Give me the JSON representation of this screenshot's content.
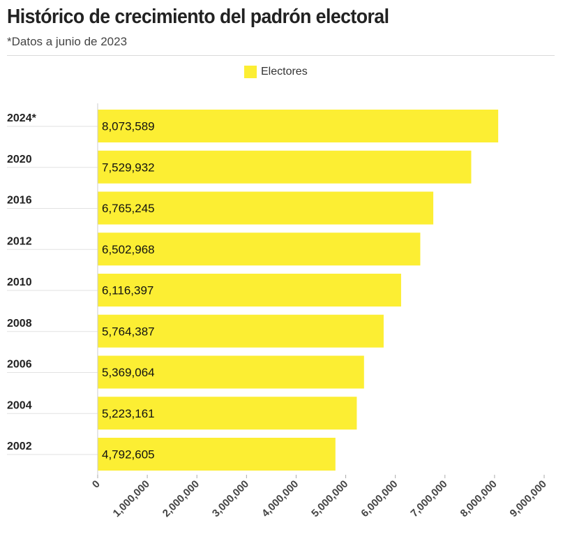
{
  "header": {
    "title": "Histórico de crecimiento del padrón electoral",
    "subtitle": "*Datos a junio de 2023"
  },
  "legend": {
    "label": "Electores",
    "color": "#fcee33"
  },
  "chart_data": {
    "type": "bar",
    "orientation": "horizontal",
    "categories": [
      "2024*",
      "2020",
      "2016",
      "2012",
      "2010",
      "2008",
      "2006",
      "2004",
      "2002"
    ],
    "series": [
      {
        "name": "Electores",
        "values": [
          8073589,
          7529932,
          6765245,
          6502968,
          6116397,
          5764387,
          5369064,
          5223161,
          4792605
        ]
      }
    ],
    "value_labels": [
      "8,073,589",
      "7,529,932",
      "6,765,245",
      "6,502,968",
      "6,116,397",
      "5,764,387",
      "5,369,064",
      "5,223,161",
      "4,792,605"
    ],
    "xlim": [
      0,
      9000000
    ],
    "x_ticks": [
      0,
      1000000,
      2000000,
      3000000,
      4000000,
      5000000,
      6000000,
      7000000,
      8000000,
      9000000
    ],
    "x_tick_labels": [
      "0",
      "1,000,000",
      "2,000,000",
      "3,000,000",
      "4,000,000",
      "5,000,000",
      "6,000,000",
      "7,000,000",
      "8,000,000",
      "9,000,000"
    ],
    "legend_position": "top-center",
    "grid": false,
    "bar_color": "#fcee33"
  }
}
